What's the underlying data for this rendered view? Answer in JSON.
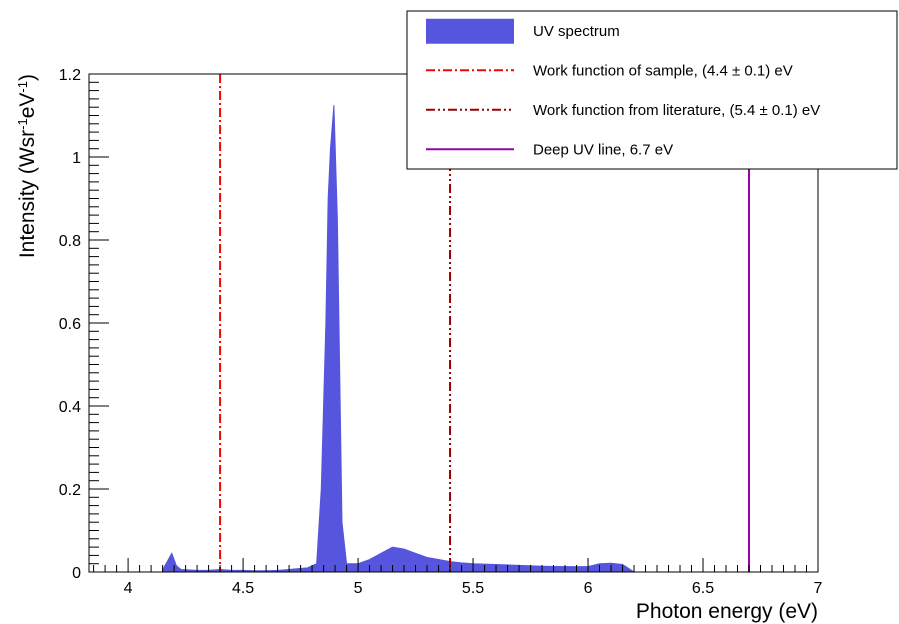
{
  "chart_data": {
    "type": "area",
    "xlabel": "Photon energy (eV)",
    "ylabel": {
      "text": "Intensity (Wsr",
      "sup1": "-1",
      "mid": "eV",
      "sup2": "-1",
      "end": ")"
    },
    "xlim": [
      3.83,
      7.0
    ],
    "ylim": [
      0,
      1.2
    ],
    "x_ticks": [
      4,
      4.5,
      5,
      5.5,
      6,
      6.5,
      7
    ],
    "x_tick_labels": [
      "4",
      "4.5",
      "5",
      "5.5",
      "6",
      "6.5",
      "7"
    ],
    "y_ticks": [
      0,
      0.2,
      0.4,
      0.6,
      0.8,
      1.0,
      1.2
    ],
    "y_tick_labels": [
      "0",
      "0.2",
      "0.4",
      "0.6",
      "0.8",
      "1",
      "1.2"
    ],
    "grid": false,
    "legend_position": "top-right",
    "series": [
      {
        "name": "UV spectrum",
        "type": "area",
        "color": "#5555dd",
        "x": [
          4.15,
          4.17,
          4.19,
          4.21,
          4.23,
          4.26,
          4.3,
          4.35,
          4.4,
          4.45,
          4.5,
          4.55,
          4.6,
          4.65,
          4.7,
          4.74,
          4.78,
          4.82,
          4.84,
          4.86,
          4.87,
          4.88,
          4.895,
          4.91,
          4.93,
          4.95,
          5.0,
          5.05,
          5.1,
          5.15,
          5.2,
          5.25,
          5.3,
          5.35,
          5.4,
          5.45,
          5.5,
          5.6,
          5.7,
          5.8,
          5.9,
          6.0,
          6.05,
          6.1,
          6.15,
          6.2
        ],
        "y": [
          0.005,
          0.025,
          0.045,
          0.015,
          0.006,
          0.005,
          0.004,
          0.004,
          0.006,
          0.004,
          0.004,
          0.003,
          0.003,
          0.004,
          0.006,
          0.008,
          0.01,
          0.02,
          0.2,
          0.6,
          0.9,
          1.02,
          1.125,
          0.85,
          0.12,
          0.02,
          0.02,
          0.03,
          0.045,
          0.06,
          0.055,
          0.045,
          0.035,
          0.03,
          0.025,
          0.022,
          0.02,
          0.018,
          0.016,
          0.014,
          0.013,
          0.013,
          0.02,
          0.021,
          0.018,
          0.0
        ]
      }
    ],
    "vertical_lines": [
      {
        "name": "Work function of sample, (4.4 ± 0.1) eV",
        "x": 4.4,
        "color": "#ff0000",
        "style": "dash-dot"
      },
      {
        "name": "Work function from literature, (5.4 ± 0.1) eV",
        "x": 5.4,
        "color": "#990000",
        "style": "dash-dot-dot"
      },
      {
        "name": "Deep UV line, 6.7 eV",
        "x": 6.7,
        "color": "#9900aa",
        "style": "solid"
      }
    ],
    "legend": [
      {
        "label": "UV spectrum",
        "kind": "box",
        "color": "#5555dd"
      },
      {
        "label": "Work function of sample, (4.4 ± 0.1) eV",
        "kind": "line",
        "color": "#ff0000",
        "style": "dash-dot"
      },
      {
        "label": "Work function from literature, (5.4 ± 0.1) eV",
        "kind": "line",
        "color": "#990000",
        "style": "dash-dot-dot"
      },
      {
        "label": "Deep UV line, 6.7 eV",
        "kind": "line",
        "color": "#9900aa",
        "style": "solid"
      }
    ]
  }
}
